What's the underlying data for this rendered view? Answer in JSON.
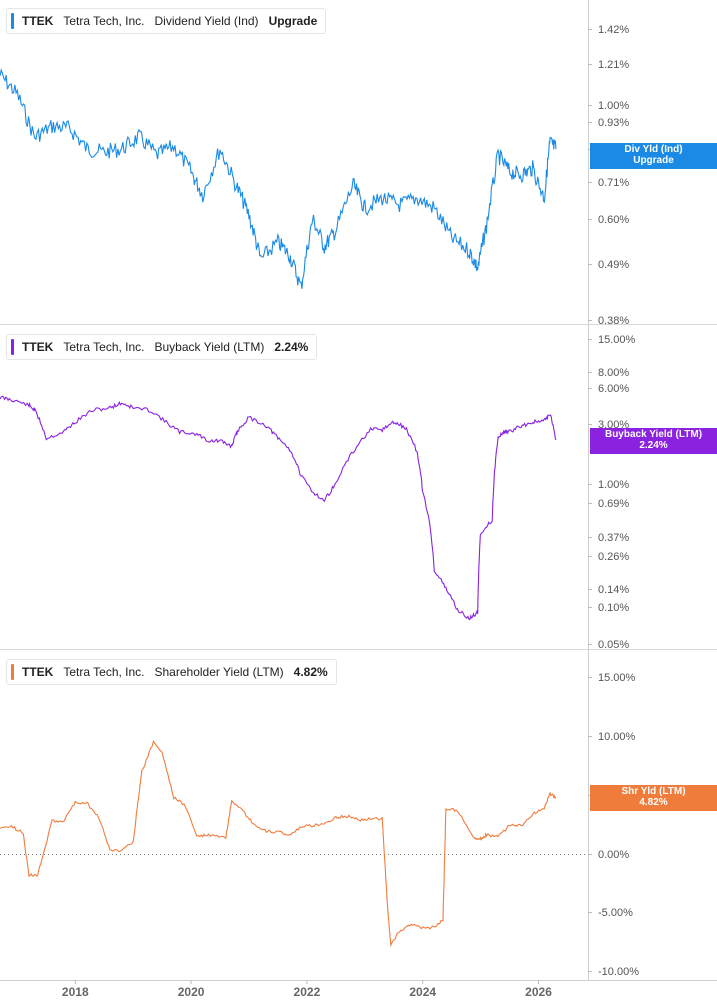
{
  "ticker": "TTEK",
  "company": "Tetra Tech, Inc.",
  "panels": [
    {
      "metric": "Dividend Yield (Ind)",
      "value": "Upgrade",
      "tag_line1": "Div Yld (Ind)",
      "tag_line2": "Upgrade",
      "color": "#1a8ae5",
      "y_ticks": [
        "1.42%",
        "1.21%",
        "1.00%",
        "0.93%",
        "0.81%",
        "0.71%",
        "0.60%",
        "0.49%",
        "0.38%"
      ]
    },
    {
      "metric": "Buyback Yield (LTM)",
      "value": "2.24%",
      "tag_line1": "Buyback Yield (LTM)",
      "tag_line2": "2.24%",
      "color": "#8a22e0",
      "y_ticks": [
        "15.00%",
        "8.00%",
        "6.00%",
        "3.00%",
        "1.00%",
        "0.69%",
        "0.37%",
        "0.26%",
        "0.14%",
        "0.10%",
        "0.05%"
      ]
    },
    {
      "metric": "Shareholder Yield (LTM)",
      "value": "4.82%",
      "tag_line1": "Shr Yld (LTM)",
      "tag_line2": "4.82%",
      "color": "#f07c3c",
      "y_ticks": [
        "15.00%",
        "10.00%",
        "5.00%",
        "0.00%",
        "-5.00%",
        "-10.00%"
      ]
    }
  ],
  "x_ticks": [
    "2018",
    "2020",
    "2022",
    "2024",
    "2026"
  ],
  "chart_data": [
    {
      "type": "line",
      "title": "TTEK Tetra Tech, Inc. Dividend Yield (Ind)",
      "scale": "log",
      "ylim": [
        0.38,
        1.6
      ],
      "x": [
        2016.7,
        2017.0,
        2017.3,
        2017.6,
        2017.9,
        2018.2,
        2018.5,
        2018.8,
        2019.1,
        2019.4,
        2019.7,
        2020.0,
        2020.2,
        2020.5,
        2020.8,
        2021.0,
        2021.2,
        2021.5,
        2021.7,
        2021.9,
        2022.1,
        2022.3,
        2022.5,
        2022.8,
        2023.0,
        2023.3,
        2023.6,
        2023.9,
        2024.2,
        2024.5,
        2024.8,
        2024.95,
        2025.1,
        2025.3,
        2025.5,
        2025.7,
        2025.9,
        2026.1,
        2026.2,
        2026.3
      ],
      "series": [
        {
          "values": [
            1.15,
            1.05,
            0.86,
            0.91,
            0.9,
            0.81,
            0.8,
            0.81,
            0.86,
            0.79,
            0.82,
            0.74,
            0.67,
            0.81,
            0.69,
            0.61,
            0.5,
            0.54,
            0.51,
            0.44,
            0.6,
            0.53,
            0.57,
            0.7,
            0.63,
            0.66,
            0.64,
            0.66,
            0.63,
            0.55,
            0.52,
            0.48,
            0.58,
            0.79,
            0.74,
            0.73,
            0.75,
            0.66,
            0.84,
            0.81
          ]
        }
      ]
    },
    {
      "type": "line",
      "title": "TTEK Tetra Tech, Inc. Buyback Yield (LTM)",
      "scale": "log",
      "ylim": [
        0.05,
        15.0
      ],
      "x": [
        2016.7,
        2016.9,
        2017.2,
        2017.3,
        2017.5,
        2017.8,
        2018.0,
        2018.3,
        2018.6,
        2018.8,
        2019.0,
        2019.3,
        2019.6,
        2019.8,
        2020.1,
        2020.3,
        2020.5,
        2020.7,
        2020.8,
        2021.0,
        2021.3,
        2021.5,
        2021.7,
        2021.9,
        2022.1,
        2022.3,
        2022.5,
        2022.8,
        2023.1,
        2023.3,
        2023.5,
        2023.7,
        2023.9,
        2024.0,
        2024.2,
        2024.4,
        2024.6,
        2024.8,
        2024.95,
        2025.0,
        2025.2,
        2025.3,
        2025.4,
        2025.5,
        2025.7,
        2025.9,
        2026.1,
        2026.2,
        2026.3
      ],
      "series": [
        {
          "values": [
            5.0,
            4.8,
            4.3,
            3.9,
            2.3,
            2.6,
            3.1,
            3.9,
            4.1,
            4.5,
            4.1,
            3.9,
            3.0,
            2.6,
            2.5,
            2.2,
            2.2,
            2.0,
            2.6,
            3.4,
            2.9,
            2.3,
            1.9,
            1.15,
            0.86,
            0.72,
            1.0,
            1.8,
            2.7,
            2.7,
            3.1,
            2.8,
            1.8,
            0.85,
            0.2,
            0.14,
            0.095,
            0.08,
            0.09,
            0.4,
            0.5,
            2.3,
            2.6,
            2.6,
            2.9,
            3.1,
            3.2,
            3.6,
            2.24
          ]
        }
      ]
    },
    {
      "type": "line",
      "title": "TTEK Tetra Tech, Inc. Shareholder Yield (LTM)",
      "scale": "linear",
      "ylim": [
        -10.0,
        15.0
      ],
      "x": [
        2016.7,
        2016.9,
        2017.1,
        2017.2,
        2017.35,
        2017.6,
        2017.8,
        2018.0,
        2018.2,
        2018.4,
        2018.6,
        2018.8,
        2019.0,
        2019.15,
        2019.35,
        2019.5,
        2019.7,
        2019.9,
        2020.1,
        2020.3,
        2020.6,
        2020.7,
        2020.9,
        2021.1,
        2021.3,
        2021.5,
        2021.7,
        2021.9,
        2022.1,
        2022.3,
        2022.5,
        2022.7,
        2022.9,
        2023.1,
        2023.3,
        2023.4,
        2023.45,
        2023.6,
        2023.8,
        2024.0,
        2024.2,
        2024.35,
        2024.4,
        2024.6,
        2024.9,
        2025.0,
        2025.1,
        2025.3,
        2025.5,
        2025.7,
        2025.9,
        2026.1,
        2026.2,
        2026.3
      ],
      "series": [
        {
          "values": [
            2.3,
            2.3,
            1.8,
            -1.8,
            -1.8,
            2.8,
            2.8,
            4.4,
            4.3,
            3.2,
            0.3,
            0.3,
            1.1,
            7.0,
            9.5,
            8.6,
            4.8,
            4.1,
            1.5,
            1.6,
            1.4,
            4.4,
            3.6,
            2.4,
            1.9,
            1.9,
            1.6,
            2.3,
            2.4,
            2.6,
            3.1,
            3.2,
            2.9,
            3.0,
            3.0,
            -5.0,
            -7.7,
            -6.5,
            -6.0,
            -6.3,
            -6.2,
            -5.6,
            3.8,
            3.7,
            1.2,
            1.3,
            1.6,
            1.5,
            2.4,
            2.4,
            3.4,
            3.9,
            5.1,
            4.82
          ]
        }
      ]
    }
  ]
}
